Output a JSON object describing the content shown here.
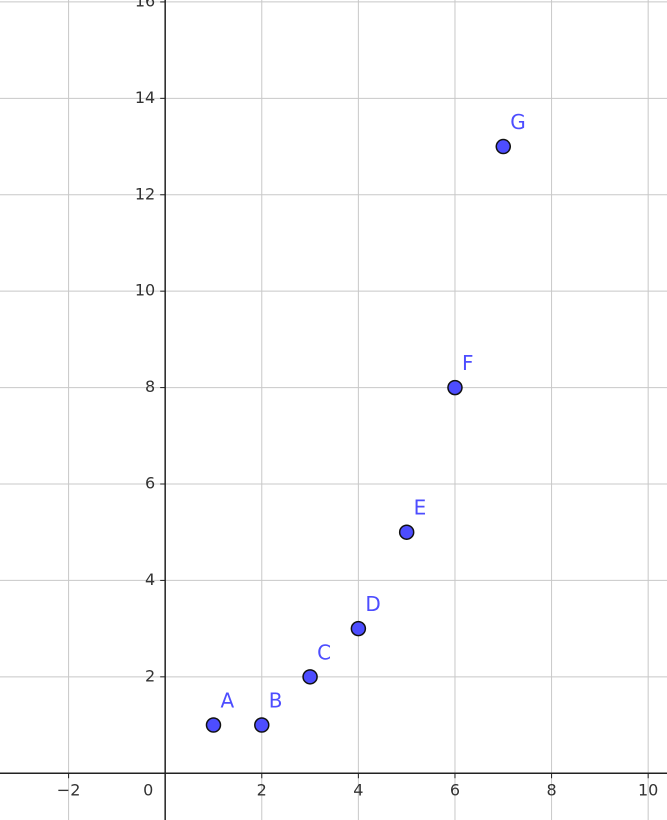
{
  "chart_data": {
    "type": "scatter",
    "x": [
      1,
      2,
      3,
      4,
      5,
      6,
      7
    ],
    "values": [
      1,
      1,
      2,
      3,
      5,
      8,
      13
    ],
    "point_labels": [
      "A",
      "B",
      "C",
      "D",
      "E",
      "F",
      "G"
    ],
    "color": "#4d4dff",
    "xlim": [
      -3.42,
      10.39
    ],
    "ylim": [
      -0.97,
      16.04
    ],
    "xticks": [
      {
        "value": -2,
        "label": "−2"
      },
      0,
      2,
      4,
      6,
      8,
      10
    ],
    "yticks": [
      2,
      4,
      6,
      8,
      10,
      12,
      14,
      16
    ],
    "grid": true
  }
}
